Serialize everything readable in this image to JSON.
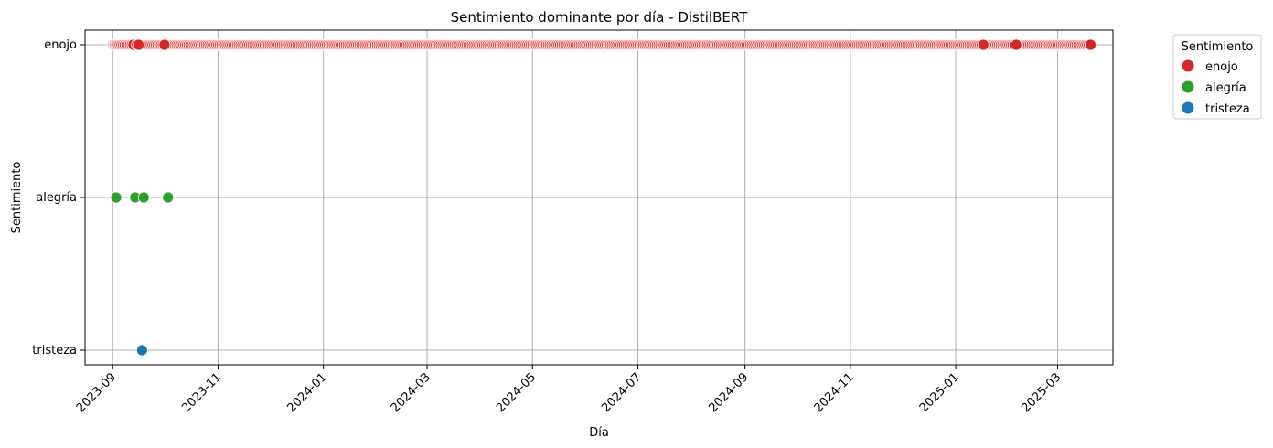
{
  "chart_data": {
    "type": "scatter",
    "title": "Sentimiento dominante por día - DistilBERT",
    "xlabel": "Día",
    "ylabel": "Sentimiento",
    "x_axis": "date",
    "xlim": [
      "2023-08-16",
      "2025-04-02"
    ],
    "xticks": [
      "2023-09",
      "2023-11",
      "2024-01",
      "2024-03",
      "2024-05",
      "2024-07",
      "2024-09",
      "2024-11",
      "2025-01",
      "2025-03"
    ],
    "yticks": [
      "enojo",
      "alegría",
      "tristeza"
    ],
    "grid": true,
    "legend_title": "Sentimiento",
    "legend_position": "outside-top-right",
    "series": [
      {
        "name": "enojo",
        "color": "#d62728",
        "x_range": [
          "2023-09-01",
          "2025-03-20"
        ],
        "x_step_days": 1,
        "x_solid": [
          "2023-09-13",
          "2023-09-15",
          "2023-09-16",
          "2023-10-01",
          "2025-01-17",
          "2025-02-04",
          "2025-02-05",
          "2025-03-20"
        ]
      },
      {
        "name": "alegría",
        "color": "#2ca02c",
        "x": [
          "2023-09-03",
          "2023-09-14",
          "2023-09-19",
          "2023-10-03"
        ]
      },
      {
        "name": "tristeza",
        "color": "#1f77b4",
        "x": [
          "2023-09-18"
        ]
      }
    ]
  }
}
